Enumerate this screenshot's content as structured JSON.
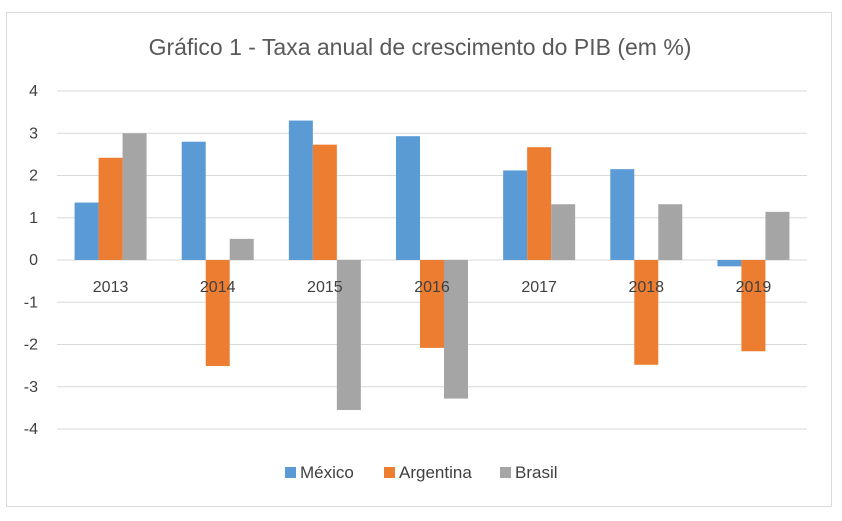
{
  "chart_data": {
    "type": "bar",
    "title": "Gráfico 1 - Taxa anual de crescimento do PIB (em %)",
    "categories": [
      "2013",
      "2014",
      "2015",
      "2016",
      "2017",
      "2018",
      "2019"
    ],
    "series": [
      {
        "name": "México",
        "color": "#5b9bd5",
        "values": [
          1.36,
          2.8,
          3.3,
          2.93,
          2.12,
          2.15,
          -0.15
        ]
      },
      {
        "name": "Argentina",
        "color": "#ed7d31",
        "values": [
          2.42,
          -2.51,
          2.73,
          -2.08,
          2.67,
          -2.48,
          -2.16
        ]
      },
      {
        "name": "Brasil",
        "color": "#a5a5a5",
        "values": [
          3.0,
          0.5,
          -3.55,
          -3.28,
          1.32,
          1.32,
          1.14
        ]
      }
    ],
    "ylim": [
      -4,
      4
    ],
    "yticks": [
      4,
      3,
      2,
      1,
      0,
      -1,
      -2,
      -3,
      -4
    ],
    "grid": true,
    "legend": "bottom",
    "xlabel": "",
    "ylabel": ""
  }
}
